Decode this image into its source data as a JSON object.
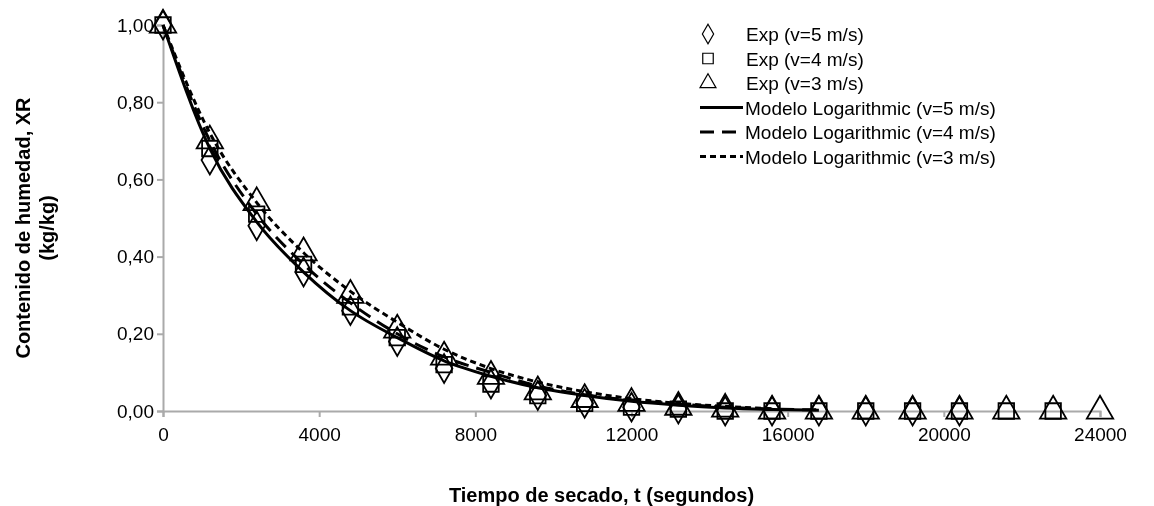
{
  "chart_data": {
    "type": "scatter",
    "xlabel": "Tiempo de secado, t (segundos)",
    "ylabel": "Contenido de humedad, XR\n(kg/kg)",
    "xlim": [
      0,
      24000
    ],
    "xticks": [
      0,
      4000,
      8000,
      12000,
      16000,
      20000,
      24000
    ],
    "ylim": [
      0,
      1
    ],
    "yticks": [
      {
        "value": 0,
        "label": "0,00"
      },
      {
        "value": 0.2,
        "label": "0,20"
      },
      {
        "value": 0.4,
        "label": "0,40"
      },
      {
        "value": 0.6,
        "label": "0,60"
      },
      {
        "value": 0.8,
        "label": "0,80"
      },
      {
        "value": 1,
        "label": "1,00"
      }
    ],
    "grid": false,
    "legend": "top right",
    "series": [
      {
        "name": "Exp (v=5 m/s)",
        "marker": "diamond",
        "color": "#000000",
        "x": [
          0,
          1200,
          2400,
          3600,
          4800,
          6000,
          7200,
          8400,
          9600,
          10800,
          12000,
          13200,
          14400,
          15600,
          16800,
          18000,
          19200,
          20400
        ],
        "values": [
          1,
          0.65,
          0.48,
          0.36,
          0.26,
          0.18,
          0.11,
          0.07,
          0.04,
          0.02,
          0.01,
          0.005,
          0,
          0,
          0,
          0,
          0,
          0
        ]
      },
      {
        "name": "Exp (v=4 m/s)",
        "marker": "square",
        "color": "#000000",
        "x": [
          0,
          1200,
          2400,
          3600,
          4800,
          6000,
          7200,
          8400,
          9600,
          10800,
          12000,
          13200,
          14400,
          15600,
          16800,
          18000,
          19200,
          20400,
          21600,
          22800
        ],
        "values": [
          1,
          0.68,
          0.51,
          0.38,
          0.27,
          0.19,
          0.12,
          0.07,
          0.04,
          0.02,
          0.01,
          0.005,
          0,
          0,
          0,
          0,
          0,
          0,
          0,
          0
        ]
      },
      {
        "name": "Exp (v=3 m/s)",
        "marker": "triangle",
        "color": "#000000",
        "x": [
          0,
          1200,
          2400,
          3600,
          4800,
          6000,
          7200,
          8400,
          9600,
          10800,
          12000,
          13200,
          14400,
          15600,
          16800,
          18000,
          19200,
          20400,
          21600,
          22800,
          24000
        ],
        "values": [
          1,
          0.7,
          0.54,
          0.41,
          0.3,
          0.21,
          0.14,
          0.09,
          0.05,
          0.03,
          0.02,
          0.01,
          0.005,
          0,
          0,
          0,
          0,
          0,
          0,
          0,
          0
        ]
      },
      {
        "name": "Modelo Logarithmic (v=5 m/s)",
        "type": "line",
        "line_style": "solid",
        "color": "#000000",
        "x": [
          0,
          1200,
          2400,
          3600,
          4800,
          6000,
          7200,
          8400,
          9600,
          10800,
          12000,
          13200,
          14400,
          15600,
          16800
        ],
        "values": [
          1,
          0.68,
          0.49,
          0.36,
          0.26,
          0.19,
          0.13,
          0.09,
          0.06,
          0.04,
          0.025,
          0.015,
          0.008,
          0.004,
          0.002
        ]
      },
      {
        "name": "Modelo Logarithmic (v=4 m/s)",
        "type": "line",
        "line_style": "dashed",
        "color": "#000000",
        "x": [
          0,
          1200,
          2400,
          3600,
          4800,
          6000,
          7200,
          8400,
          9600,
          10800,
          12000,
          13200,
          14400,
          15600,
          16800
        ],
        "values": [
          1,
          0.7,
          0.51,
          0.38,
          0.28,
          0.2,
          0.14,
          0.1,
          0.065,
          0.042,
          0.028,
          0.018,
          0.01,
          0.005,
          0.003
        ]
      },
      {
        "name": "Modelo Logarithmic (v=3 m/s)",
        "type": "line",
        "line_style": "dotted",
        "color": "#000000",
        "x": [
          0,
          1200,
          2400,
          3600,
          4800,
          6000,
          7200,
          8400,
          9600,
          10800,
          12000,
          13200,
          14400,
          15600
        ],
        "values": [
          1,
          0.72,
          0.54,
          0.41,
          0.31,
          0.23,
          0.16,
          0.11,
          0.075,
          0.05,
          0.032,
          0.02,
          0.012,
          0.006
        ]
      }
    ]
  }
}
